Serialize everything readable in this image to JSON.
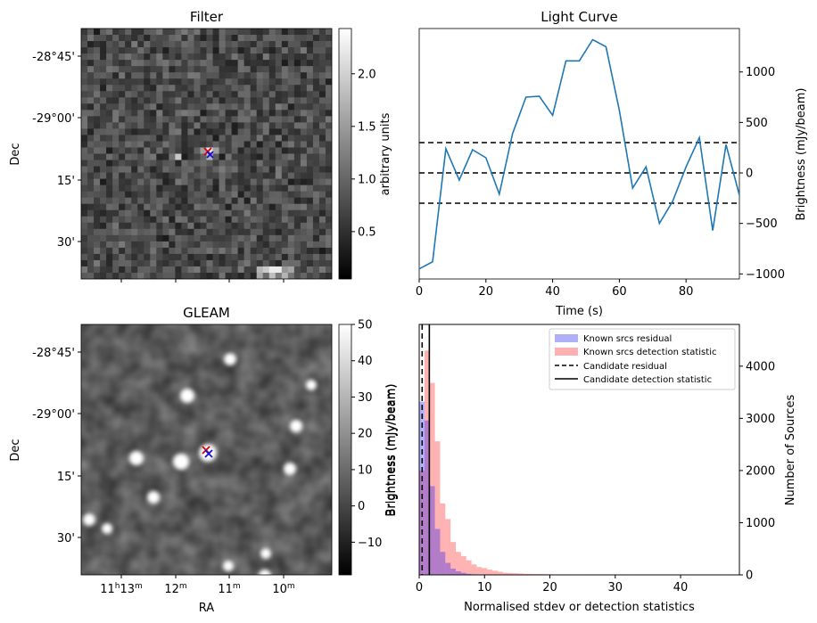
{
  "panels": {
    "filter": {
      "title": "Filter",
      "ylabel": "Dec",
      "dec_ticks": [
        "-28°45'",
        "-29°00'",
        "15'",
        "30'"
      ],
      "colorbar": {
        "label": "arbitrary units",
        "ticks": [
          "0.5",
          "1.0",
          "1.5",
          "2.0"
        ],
        "tick_values": [
          0.5,
          1.0,
          1.5,
          2.0
        ],
        "range": [
          0.05,
          2.43
        ],
        "colormap": "gray"
      }
    },
    "gleam": {
      "title": "GLEAM",
      "ylabel": "Dec",
      "xlabel": "RA",
      "dec_ticks": [
        "-28°45'",
        "-29°00'",
        "15'",
        "30'"
      ],
      "ra_ticks": {
        "first": {
          "h": "11",
          "hsup": "h",
          "m": "13",
          "msup": "m"
        },
        "others": [
          {
            "m": "12",
            "msup": "m"
          },
          {
            "m": "11",
            "msup": "m"
          },
          {
            "m": "10",
            "msup": "m"
          }
        ]
      },
      "colorbar": {
        "label": "Brightness (mJy/beam)",
        "ticks": [
          "50",
          "40",
          "30",
          "20",
          "10",
          "0",
          "−10"
        ],
        "tick_values": [
          50,
          40,
          30,
          20,
          10,
          0,
          -10
        ],
        "range": [
          -19,
          50
        ],
        "colormap": "gray"
      }
    },
    "light_curve": {
      "title": "Light Curve",
      "xlabel": "Time (s)",
      "ylabel": "Brightness (mJy/beam)",
      "x_ticks": [
        "0",
        "20",
        "40",
        "60",
        "80"
      ],
      "y_ticks": [
        "1000",
        "500",
        "0",
        "−500",
        "−1000"
      ],
      "line_color": "#1f77b4"
    },
    "histogram": {
      "xlabel": "Normalised stdev or detection statistics",
      "ylabel_left": "Brightness (mJy/beam)",
      "ylabel_right": "Number of Sources",
      "x_ticks": [
        "0",
        "10",
        "20",
        "30",
        "40"
      ],
      "y_ticks": [
        "0",
        "1000",
        "2000",
        "3000",
        "4000"
      ],
      "legend": [
        {
          "label": "Known srcs residual",
          "color": "#b0b0f8",
          "kind": "patch"
        },
        {
          "label": "Known srcs detection statistic",
          "color": "#ffb0b0",
          "kind": "patch"
        },
        {
          "label": "Candidate residual",
          "color": "#000000",
          "kind": "dashed"
        },
        {
          "label": "Candidate detection statistic",
          "color": "#000000",
          "kind": "solid"
        }
      ]
    }
  },
  "chart_data": [
    {
      "type": "image",
      "title": "Filter",
      "ylabel": "Dec",
      "markers": [
        {
          "symbol": "x",
          "color": "red"
        },
        {
          "symbol": "x",
          "color": "blue"
        }
      ]
    },
    {
      "type": "image",
      "title": "GLEAM",
      "xlabel": "RA",
      "ylabel": "Dec",
      "markers": [
        {
          "symbol": "x",
          "color": "red"
        },
        {
          "symbol": "x",
          "color": "blue"
        }
      ]
    },
    {
      "type": "line",
      "title": "Light Curve",
      "xlabel": "Time (s)",
      "ylabel": "Brightness (mJy/beam)",
      "xlim": [
        0,
        96
      ],
      "ylim": [
        -1050,
        1430
      ],
      "x": [
        0,
        4,
        8,
        12,
        16,
        20,
        24,
        28,
        32,
        36,
        40,
        44,
        48,
        52,
        56,
        60,
        64,
        68,
        72,
        76,
        80,
        84,
        88,
        92,
        96
      ],
      "y": [
        -950,
        -880,
        240,
        -70,
        230,
        150,
        -210,
        390,
        750,
        760,
        570,
        1110,
        1110,
        1320,
        1250,
        620,
        -150,
        60,
        -500,
        -280,
        60,
        350,
        -570,
        280,
        -220
      ],
      "hlines": [
        {
          "y": 0,
          "style": "dashed",
          "color": "black"
        },
        {
          "y": 300,
          "style": "dashed",
          "color": "black"
        },
        {
          "y": -300,
          "style": "dashed",
          "color": "black"
        }
      ]
    },
    {
      "type": "bar",
      "subtype": "histogram",
      "xlabel": "Normalised stdev or detection statistics",
      "ylabel": "Number of Sources",
      "xlim": [
        0,
        49
      ],
      "ylim": [
        0,
        4800
      ],
      "bin_width": 0.8,
      "series": [
        {
          "name": "Known srcs detection statistic",
          "color": "#ff0000",
          "alpha": 0.3,
          "bin_starts": [
            0,
            0.8,
            1.6,
            2.4,
            3.2,
            4.0,
            4.8,
            5.6,
            6.4,
            7.2,
            8.0,
            8.8,
            9.6,
            10.4,
            11.2,
            12.0,
            12.8,
            13.6,
            14.4,
            15.2,
            16.0,
            16.8,
            17.6,
            18.4,
            19.2,
            20.0,
            21.6,
            23.2,
            24.8,
            32.4,
            46.0
          ],
          "values": [
            2000,
            4300,
            3680,
            2560,
            1370,
            1070,
            630,
            440,
            360,
            280,
            200,
            150,
            130,
            100,
            80,
            60,
            40,
            35,
            30,
            25,
            20,
            18,
            15,
            15,
            12,
            10,
            8,
            8,
            6,
            4,
            3
          ]
        },
        {
          "name": "Known srcs residual",
          "color": "#0000ff",
          "alpha": 0.3,
          "bin_starts": [
            0,
            0.8,
            1.6,
            2.4,
            3.2,
            4.0,
            4.8,
            5.6,
            6.4,
            7.2,
            8.0,
            8.8
          ],
          "values": [
            3320,
            2960,
            1700,
            880,
            440,
            230,
            120,
            70,
            40,
            20,
            10,
            5
          ]
        }
      ],
      "vlines": [
        {
          "x": 0.45,
          "style": "dashed",
          "color": "black",
          "label": "Candidate residual"
        },
        {
          "x": 1.55,
          "style": "solid",
          "color": "black",
          "label": "Candidate detection statistic"
        }
      ]
    }
  ]
}
